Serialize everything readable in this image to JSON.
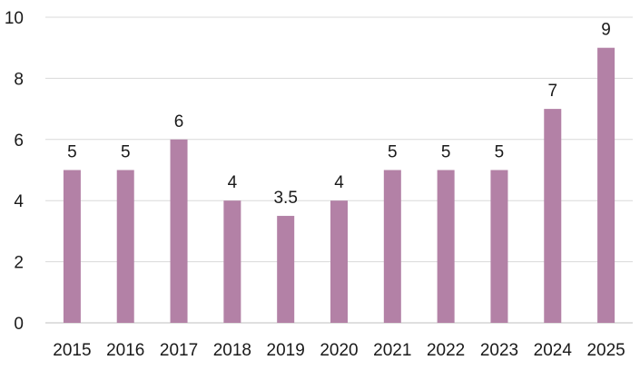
{
  "chart_data": {
    "type": "bar",
    "title": "",
    "xlabel": "",
    "ylabel": "",
    "categories": [
      "2015",
      "2016",
      "2017",
      "2018",
      "2019",
      "2020",
      "2021",
      "2022",
      "2023",
      "2024",
      "2025"
    ],
    "values": [
      5,
      5,
      6,
      4,
      3.5,
      4,
      5,
      5,
      5,
      7,
      9
    ],
    "data_labels": [
      "5",
      "5",
      "6",
      "4",
      "3.5",
      "4",
      "5",
      "5",
      "5",
      "7",
      "9"
    ],
    "ylim": [
      0,
      10
    ],
    "yticks": [
      "0",
      "2",
      "4",
      "6",
      "8",
      "10"
    ],
    "grid": true,
    "legend": "none",
    "bar_color": "#b381a6"
  }
}
